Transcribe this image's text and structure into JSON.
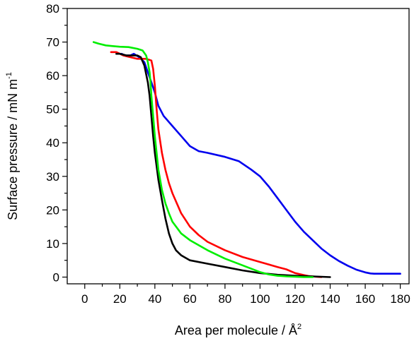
{
  "chart_data": {
    "type": "line",
    "title": "",
    "xlabel": "Area per molecule / Å",
    "xlabel_sup": "2",
    "ylabel": "Surface pressure / mN m",
    "ylabel_sup": "-1",
    "xlim": [
      -10,
      185
    ],
    "ylim": [
      -2,
      80
    ],
    "xticks": [
      0,
      20,
      40,
      60,
      80,
      100,
      120,
      140,
      160,
      180
    ],
    "xticks_minor": [
      10,
      30,
      50,
      70,
      90,
      110,
      130,
      150,
      170
    ],
    "yticks": [
      0,
      10,
      20,
      30,
      40,
      50,
      60,
      70,
      80
    ],
    "yticks_minor": [
      5,
      15,
      25,
      35,
      45,
      55,
      65,
      75
    ],
    "grid": false,
    "legend": "none",
    "series": [
      {
        "color": "#0000ee",
        "x": [
          21,
          23,
          26,
          28,
          31,
          34,
          36,
          38,
          40,
          42,
          45,
          50,
          55,
          60,
          65,
          70,
          80,
          88,
          95,
          100,
          105,
          110,
          115,
          120,
          125,
          130,
          135,
          140,
          145,
          150,
          155,
          160,
          163,
          165,
          168,
          175,
          180
        ],
        "y": [
          66.5,
          66,
          66,
          66.5,
          65.5,
          64,
          61,
          58,
          55,
          51,
          48,
          45,
          42,
          39,
          37.5,
          37,
          35.8,
          34.5,
          32,
          30,
          27,
          23.5,
          20,
          16.5,
          13.5,
          11,
          8.5,
          6.5,
          4.8,
          3.4,
          2.2,
          1.4,
          1.1,
          1,
          1,
          1,
          1
        ]
      },
      {
        "color": "#ff0000",
        "x": [
          15,
          18,
          22,
          26,
          30,
          35,
          38,
          39,
          40,
          41,
          42,
          44,
          46,
          48,
          50,
          55,
          60,
          65,
          70,
          80,
          90,
          100,
          110,
          115,
          120,
          125,
          128,
          132,
          135
        ],
        "y": [
          67,
          67,
          66,
          65.5,
          65,
          65,
          64.5,
          62,
          57,
          50,
          44,
          37,
          32,
          28,
          25,
          19,
          15,
          12.5,
          10.5,
          8,
          6,
          4.5,
          3,
          2.3,
          1.2,
          0.6,
          0.3,
          0.1,
          0
        ]
      },
      {
        "color": "#000000",
        "x": [
          18,
          20,
          24,
          28,
          30,
          32,
          34,
          36,
          37,
          38,
          39,
          40,
          41,
          42,
          44,
          46,
          48,
          50,
          52,
          55,
          60,
          70,
          80,
          90,
          100,
          110,
          120,
          125,
          130,
          135,
          140
        ],
        "y": [
          66.5,
          66.5,
          66,
          66,
          66,
          65.5,
          63,
          58,
          54,
          48,
          42,
          37,
          33,
          29,
          23,
          17.5,
          13,
          10,
          8,
          6.5,
          5,
          4,
          3,
          2,
          1.2,
          0.7,
          0.4,
          0.3,
          0.2,
          0.1,
          0
        ]
      },
      {
        "color": "#00ee00",
        "x": [
          5,
          8,
          12,
          16,
          20,
          25,
          30,
          33,
          35,
          36,
          37,
          37.5,
          38,
          39,
          40,
          41,
          42,
          44,
          46,
          48,
          50,
          55,
          60,
          70,
          80,
          90,
          100,
          105,
          110,
          115,
          120,
          125,
          130
        ],
        "y": [
          70,
          69.5,
          69,
          68.8,
          68.6,
          68.5,
          68,
          67.5,
          66,
          64,
          61,
          58,
          54,
          48,
          42,
          37,
          32,
          26,
          22,
          19,
          16.5,
          13,
          11,
          8,
          5.5,
          3.5,
          1.5,
          0.8,
          0.4,
          0.2,
          0.1,
          0,
          0
        ]
      }
    ]
  }
}
